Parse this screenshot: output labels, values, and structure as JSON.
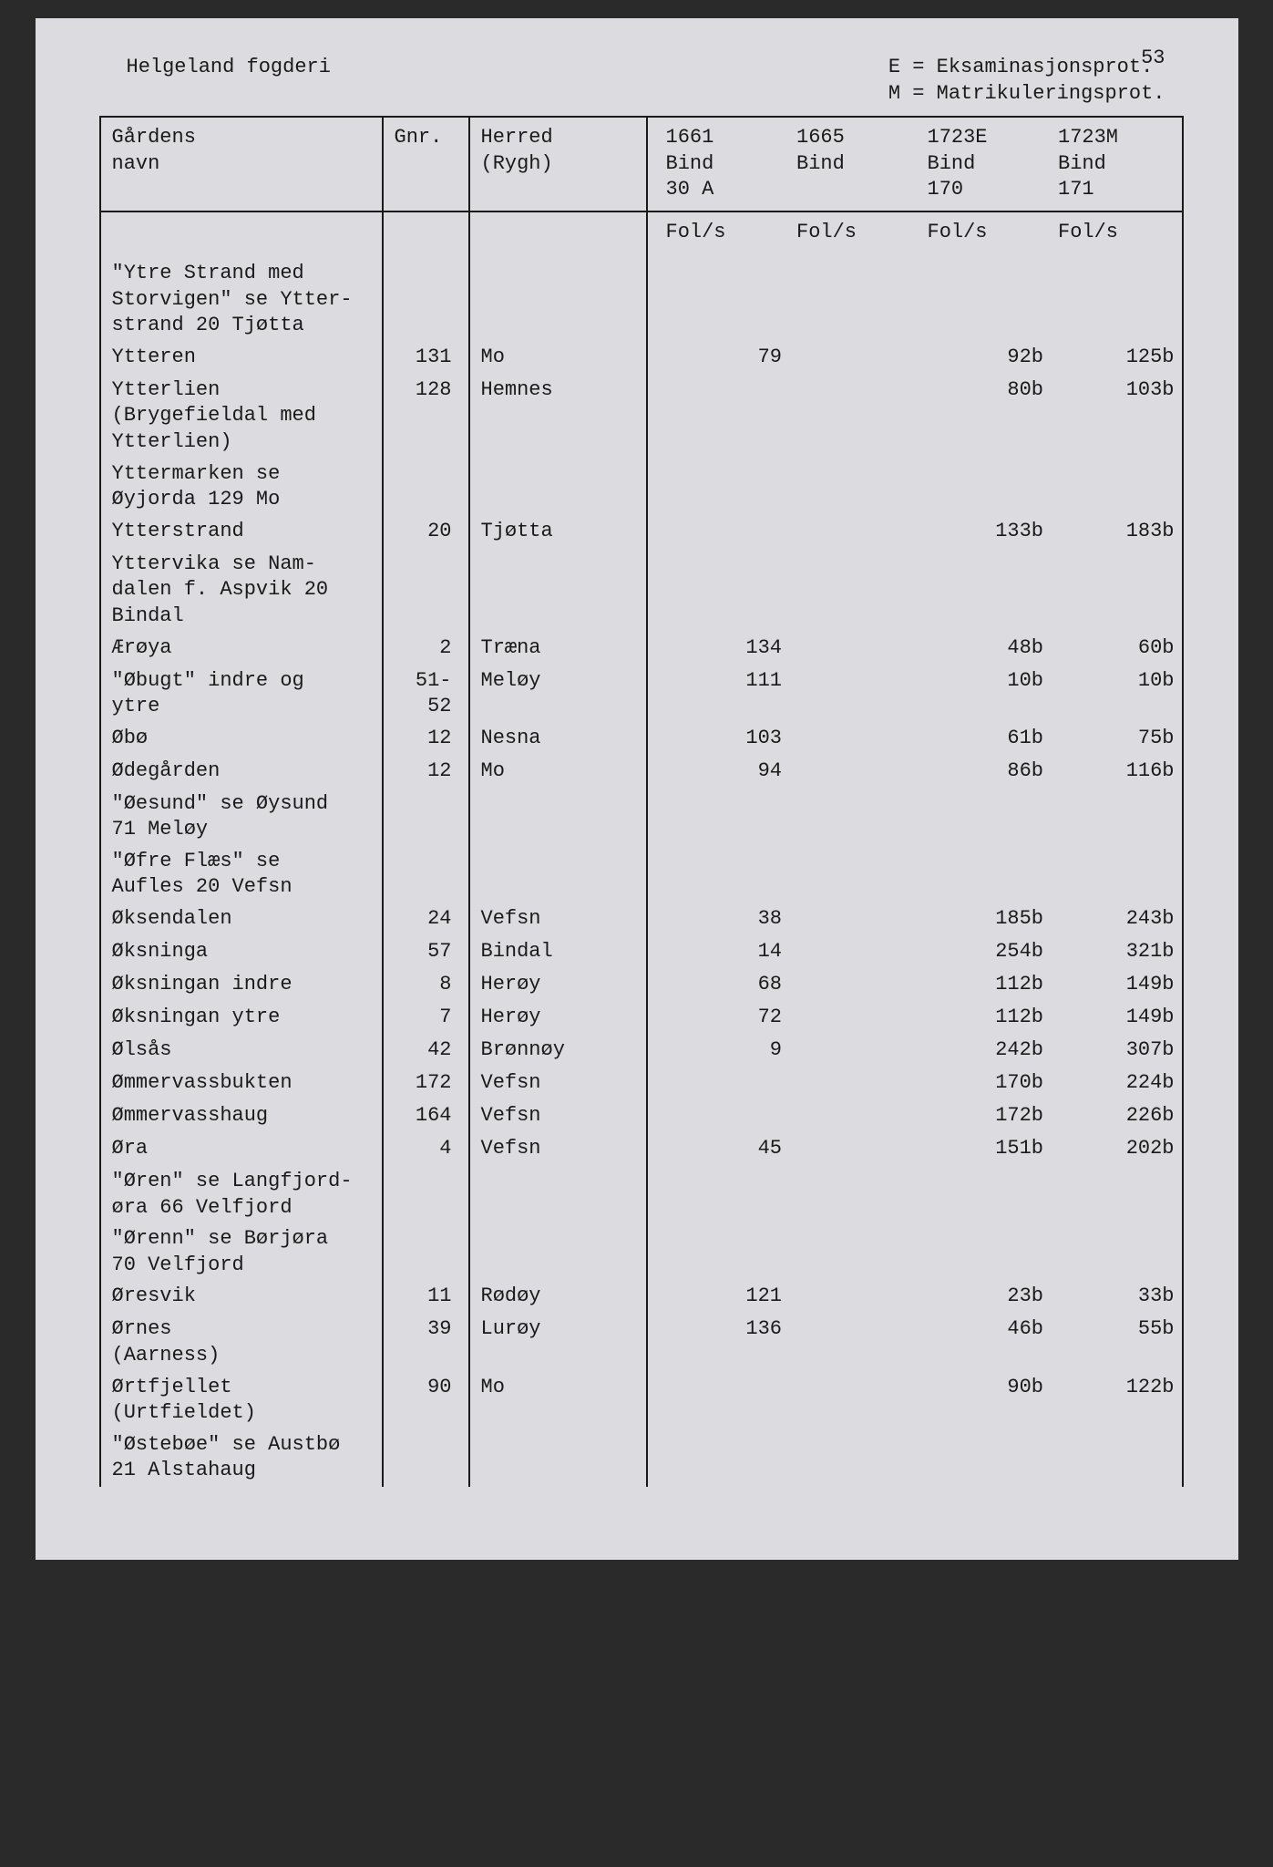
{
  "page_number": "53",
  "header": {
    "title": "Helgeland fogderi",
    "legend_line1": "E = Eksaminasjonsprot.",
    "legend_line2": "M = Matrikuleringsprot."
  },
  "columns": {
    "name": "Gårdens\nnavn",
    "gnr": "Gnr.",
    "herred": "Herred\n(Rygh)",
    "c1661": "1661\nBind\n30 A",
    "c1665": "1665\nBind",
    "c1723e": "1723E\nBind\n170",
    "c1723m": "1723M\nBind\n171"
  },
  "folio_label": "Fol/s",
  "rows": [
    {
      "name": "\"Ytre Strand med\nStorvigen\" se Ytter-\nstrand 20 Tjøtta",
      "gnr": "",
      "herred": "",
      "c1": "",
      "c2": "",
      "c3": "",
      "c4": ""
    },
    {
      "name": "Ytteren",
      "gnr": "131",
      "herred": "Mo",
      "c1": "79",
      "c2": "",
      "c3": "92b",
      "c4": "125b"
    },
    {
      "name": "Ytterlien\n(Brygefieldal med\nYtterlien)",
      "gnr": "128",
      "herred": "Hemnes",
      "c1": "",
      "c2": "",
      "c3": "80b",
      "c4": "103b"
    },
    {
      "name": "Yttermarken se\nØyjorda 129 Mo",
      "gnr": "",
      "herred": "",
      "c1": "",
      "c2": "",
      "c3": "",
      "c4": ""
    },
    {
      "name": "Ytterstrand",
      "gnr": "20",
      "herred": "Tjøtta",
      "c1": "",
      "c2": "",
      "c3": "133b",
      "c4": "183b"
    },
    {
      "name": "Yttervika se Nam-\ndalen f. Aspvik 20\nBindal",
      "gnr": "",
      "herred": "",
      "c1": "",
      "c2": "",
      "c3": "",
      "c4": ""
    },
    {
      "name": "Ærøya",
      "gnr": "2",
      "herred": "Træna",
      "c1": "134",
      "c2": "",
      "c3": "48b",
      "c4": "60b"
    },
    {
      "name": "\"Øbugt\" indre og\nytre",
      "gnr": "51-\n52",
      "herred": "Meløy",
      "c1": "111",
      "c2": "",
      "c3": "10b",
      "c4": "10b"
    },
    {
      "name": "Øbø",
      "gnr": "12",
      "herred": "Nesna",
      "c1": "103",
      "c2": "",
      "c3": "61b",
      "c4": "75b"
    },
    {
      "name": "Ødegården",
      "gnr": "12",
      "herred": "Mo",
      "c1": "94",
      "c2": "",
      "c3": "86b",
      "c4": "116b"
    },
    {
      "name": "\"Øesund\" se Øysund\n71 Meløy",
      "gnr": "",
      "herred": "",
      "c1": "",
      "c2": "",
      "c3": "",
      "c4": ""
    },
    {
      "name": "\"Øfre Flæs\" se\nAufles 20 Vefsn",
      "gnr": "",
      "herred": "",
      "c1": "",
      "c2": "",
      "c3": "",
      "c4": ""
    },
    {
      "name": "Øksendalen",
      "gnr": "24",
      "herred": "Vefsn",
      "c1": "38",
      "c2": "",
      "c3": "185b",
      "c4": "243b"
    },
    {
      "name": "Øksninga",
      "gnr": "57",
      "herred": "Bindal",
      "c1": "14",
      "c2": "",
      "c3": "254b",
      "c4": "321b"
    },
    {
      "name": "Øksningan indre",
      "gnr": "8",
      "herred": "Herøy",
      "c1": "68",
      "c2": "",
      "c3": "112b",
      "c4": "149b"
    },
    {
      "name": "Øksningan ytre",
      "gnr": "7",
      "herred": "Herøy",
      "c1": "72",
      "c2": "",
      "c3": "112b",
      "c4": "149b"
    },
    {
      "name": "Ølsås",
      "gnr": "42",
      "herred": "Brønnøy",
      "c1": "9",
      "c2": "",
      "c3": "242b",
      "c4": "307b"
    },
    {
      "name": "Ømmervassbukten",
      "gnr": "172",
      "herred": "Vefsn",
      "c1": "",
      "c2": "",
      "c3": "170b",
      "c4": "224b"
    },
    {
      "name": "Ømmervasshaug",
      "gnr": "164",
      "herred": "Vefsn",
      "c1": "",
      "c2": "",
      "c3": "172b",
      "c4": "226b"
    },
    {
      "name": "Øra",
      "gnr": "4",
      "herred": "Vefsn",
      "c1": "45",
      "c2": "",
      "c3": "151b",
      "c4": "202b"
    },
    {
      "name": "\"Øren\" se Langfjord-\nøra 66 Velfjord",
      "gnr": "",
      "herred": "",
      "c1": "",
      "c2": "",
      "c3": "",
      "c4": ""
    },
    {
      "name": "\"Ørenn\" se Børjøra\n70 Velfjord",
      "gnr": "",
      "herred": "",
      "c1": "",
      "c2": "",
      "c3": "",
      "c4": ""
    },
    {
      "name": "Øresvik",
      "gnr": "11",
      "herred": "Rødøy",
      "c1": "121",
      "c2": "",
      "c3": "23b",
      "c4": "33b"
    },
    {
      "name": "Ørnes\n(Aarness)",
      "gnr": "39",
      "herred": "Lurøy",
      "c1": "136",
      "c2": "",
      "c3": "46b",
      "c4": "55b"
    },
    {
      "name": "Ørtfjellet\n(Urtfieldet)",
      "gnr": "90",
      "herred": "Mo",
      "c1": "",
      "c2": "",
      "c3": "90b",
      "c4": "122b"
    },
    {
      "name": "\"Østebøe\" se Austbø\n21 Alstahaug",
      "gnr": "",
      "herred": "",
      "c1": "",
      "c2": "",
      "c3": "",
      "c4": ""
    }
  ],
  "colors": {
    "page_bg": "#dcdce0",
    "text": "#1a1a1a",
    "border": "#1a1a1a",
    "outer_bg": "#2a2a2a"
  },
  "typography": {
    "font_family": "Courier New, monospace",
    "font_size_pt": 16
  }
}
